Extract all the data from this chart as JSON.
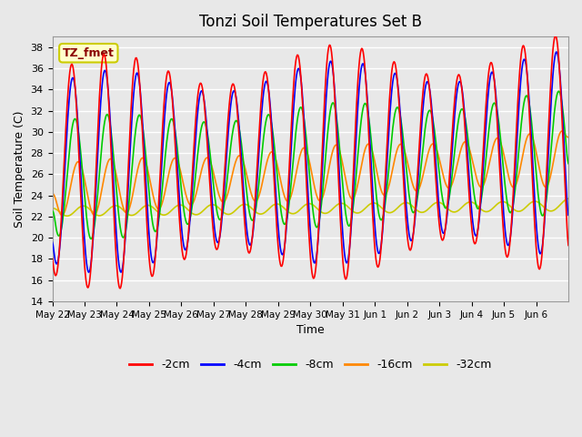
{
  "title": "Tonzi Soil Temperatures Set B",
  "xlabel": "Time",
  "ylabel": "Soil Temperature (C)",
  "ylim": [
    14,
    39
  ],
  "yticks": [
    14,
    16,
    18,
    20,
    22,
    24,
    26,
    28,
    30,
    32,
    34,
    36,
    38
  ],
  "annotation_text": "TZ_fmet",
  "annotation_color": "#8B0000",
  "annotation_bg": "#FFFFCC",
  "annotation_border": "#CCCC00",
  "bg_color": "#E8E8E8",
  "plot_bg": "#E8E8E8",
  "grid_color": "#FFFFFF",
  "colors": {
    "-2cm": "#FF0000",
    "-4cm": "#0000FF",
    "-8cm": "#00CC00",
    "-16cm": "#FF8800",
    "-32cm": "#CCCC00"
  },
  "legend_labels": [
    "-2cm",
    "-4cm",
    "-8cm",
    "-16cm",
    "-32cm"
  ],
  "x_tick_labels": [
    "May 22",
    "May 23",
    "May 24",
    "May 25",
    "May 26",
    "May 27",
    "May 28",
    "May 29",
    "May 30",
    "May 31",
    "Jun 1",
    "Jun 2",
    "Jun 3",
    "Jun 4",
    "Jun 5",
    "Jun 6"
  ],
  "n_days": 16,
  "samples_per_day": 48
}
